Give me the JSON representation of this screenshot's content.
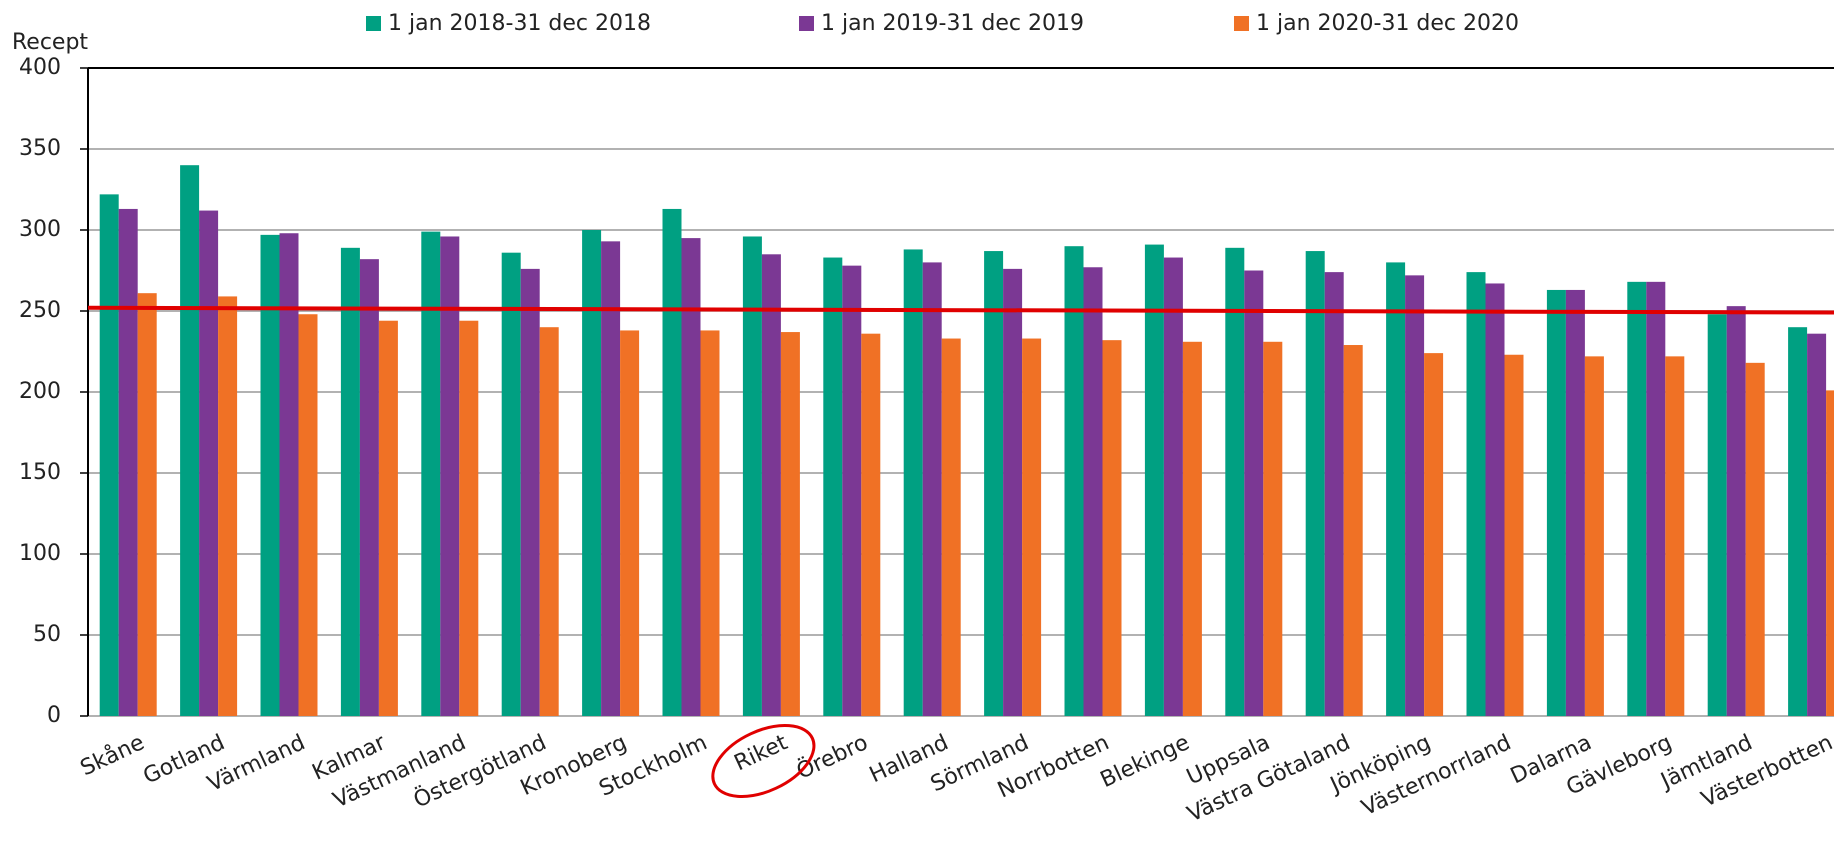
{
  "chart_data": {
    "type": "bar",
    "y_label": "Recept",
    "categories": [
      "Skåne",
      "Gotland",
      "Värmland",
      "Kalmar",
      "Västmanland",
      "Östergötland",
      "Kronoberg",
      "Stockholm",
      "Riket",
      "Örebro",
      "Halland",
      "Sörmland",
      "Norrbotten",
      "Blekinge",
      "Uppsala",
      "Västra Götaland",
      "Jönköping",
      "Västernorrland",
      "Dalarna",
      "Gävleborg",
      "Jämtland",
      "Västerbotten"
    ],
    "series": [
      {
        "name": "1 jan 2018-31 dec 2018",
        "color": "#00a082",
        "values": [
          322,
          340,
          297,
          289,
          299,
          286,
          300,
          313,
          296,
          283,
          288,
          287,
          290,
          291,
          289,
          287,
          280,
          274,
          263,
          268,
          248,
          240
        ]
      },
      {
        "name": "1 jan 2019-31 dec 2019",
        "color": "#7b3894",
        "values": [
          313,
          312,
          298,
          282,
          296,
          276,
          293,
          295,
          285,
          278,
          280,
          276,
          277,
          283,
          275,
          274,
          272,
          267,
          263,
          268,
          253,
          236
        ]
      },
      {
        "name": "1 jan 2020-31 dec 2020",
        "color": "#f07125",
        "values": [
          261,
          259,
          248,
          244,
          244,
          240,
          238,
          238,
          237,
          236,
          233,
          233,
          232,
          231,
          231,
          229,
          224,
          223,
          222,
          222,
          218,
          201
        ]
      }
    ],
    "reference_line": {
      "start": 252,
      "end": 249,
      "color": "#e00000"
    },
    "ylim": [
      0,
      400
    ],
    "yticks": [
      0,
      50,
      100,
      150,
      200,
      250,
      300,
      350,
      400
    ],
    "grid": true
  }
}
